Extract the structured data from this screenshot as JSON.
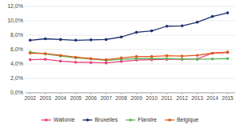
{
  "chart_data": {
    "type": "line",
    "x": [
      2002,
      2003,
      2004,
      2005,
      2006,
      2007,
      2008,
      2009,
      2010,
      2011,
      2012,
      2013,
      2014,
      2015
    ],
    "series": [
      {
        "name": "Wallonie",
        "color": "#e8427a",
        "marker": "circle",
        "values": [
          4.6,
          4.65,
          4.4,
          4.25,
          4.2,
          4.15,
          4.35,
          4.55,
          4.6,
          4.65,
          4.65,
          4.7,
          5.5,
          5.6
        ]
      },
      {
        "name": "Bruxelles",
        "color": "#1a2f6e",
        "marker": "circle",
        "values": [
          7.3,
          7.5,
          7.4,
          7.3,
          7.35,
          7.4,
          7.75,
          8.4,
          8.6,
          9.25,
          9.3,
          9.8,
          10.6,
          11.1
        ]
      },
      {
        "name": "Flandre",
        "color": "#5cb85c",
        "marker": "circle",
        "values": [
          5.65,
          5.4,
          5.1,
          4.85,
          4.7,
          4.5,
          4.65,
          4.75,
          4.75,
          4.75,
          4.7,
          4.65,
          4.7,
          4.75
        ]
      },
      {
        "name": "Belgique",
        "color": "#e05a1e",
        "marker": "circle",
        "values": [
          5.5,
          5.45,
          5.2,
          4.95,
          4.75,
          4.6,
          4.85,
          5.05,
          5.05,
          5.15,
          5.1,
          5.2,
          5.5,
          5.65
        ]
      }
    ],
    "xlim": [
      2001.7,
      2015.5
    ],
    "xticks": [
      2002,
      2003,
      2004,
      2005,
      2006,
      2007,
      2008,
      2009,
      2010,
      2011,
      2012,
      2013,
      2014,
      2015
    ],
    "ylim": [
      0.0,
      12.0
    ],
    "yticks": [
      {
        "value": 0.0,
        "label": "0,0%"
      },
      {
        "value": 2.0,
        "label": "2,0%"
      },
      {
        "value": 4.0,
        "label": "4,0%"
      },
      {
        "value": 6.0,
        "label": "6,0%"
      },
      {
        "value": 8.0,
        "label": "8,0%"
      },
      {
        "value": 10.0,
        "label": "10,0%"
      },
      {
        "value": 12.0,
        "label": "12,0%"
      }
    ],
    "grid": true,
    "legend": "bottom"
  }
}
